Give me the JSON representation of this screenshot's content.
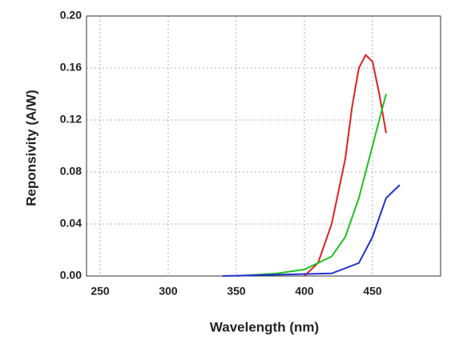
{
  "chart_data": {
    "type": "line",
    "x_label": "Wavelength (nm)",
    "y_label": "Reponsivity (A/W)",
    "xlim": [
      240,
      500
    ],
    "xticks": [
      250,
      300,
      350,
      400,
      450
    ],
    "ylim": [
      0,
      0.2
    ],
    "yticks": [
      {
        "value": 0,
        "label": "0.00"
      },
      {
        "value": 0.04,
        "label": "0.04"
      },
      {
        "value": 0.08,
        "label": "0.08"
      },
      {
        "value": 0.12,
        "label": "0.12"
      },
      {
        "value": 0.16,
        "label": "0.16"
      },
      {
        "value": 0.2,
        "label": "0.20"
      }
    ],
    "grid": true,
    "series": [
      {
        "color": "#e02020",
        "x": [
          400,
          410,
          420,
          430,
          435,
          440,
          445,
          450,
          455,
          460
        ],
        "values": [
          0.0,
          0.01,
          0.04,
          0.09,
          0.13,
          0.16,
          0.17,
          0.165,
          0.14,
          0.11
        ]
      },
      {
        "color": "#20c020",
        "x": [
          350,
          380,
          400,
          420,
          430,
          440,
          450,
          460
        ],
        "values": [
          0.0,
          0.002,
          0.005,
          0.015,
          0.03,
          0.06,
          0.1,
          0.14
        ]
      },
      {
        "color": "#2030d0",
        "x": [
          340,
          380,
          420,
          440,
          450,
          460,
          470
        ],
        "values": [
          0.0,
          0.001,
          0.002,
          0.01,
          0.03,
          0.06,
          0.07
        ]
      }
    ]
  }
}
